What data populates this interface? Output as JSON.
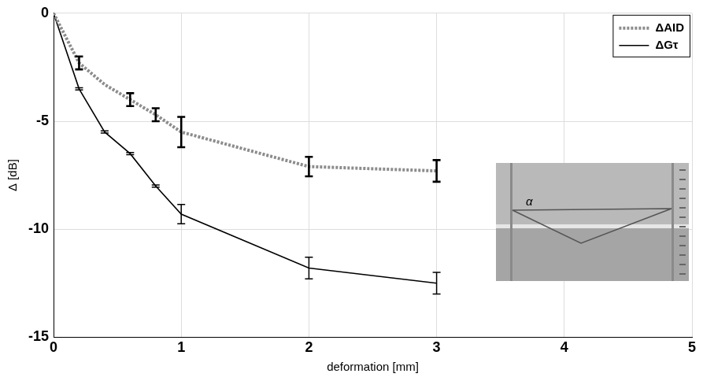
{
  "chart_data": {
    "type": "line",
    "x_label": "deformation [mm]",
    "y_label": "Δ [dB]",
    "x": [
      0,
      0.2,
      0.4,
      0.6,
      0.8,
      1,
      2,
      3
    ],
    "series": [
      {
        "name": "ΔAID",
        "color": "#8c8c8c",
        "line_style": "dotted",
        "marker": "none",
        "values": [
          0,
          -2.3,
          -3.3,
          -4.0,
          -4.7,
          -5.5,
          -7.1,
          -7.3
        ],
        "errors": [
          0,
          0.3,
          0,
          0.3,
          0.3,
          0.7,
          0.45,
          0.5
        ]
      },
      {
        "name": "ΔGτ",
        "color": "#000000",
        "line_style": "solid",
        "marker": "none",
        "values": [
          0,
          -3.5,
          -5.5,
          -6.5,
          -8.0,
          -9.3,
          -11.8,
          -12.5
        ],
        "errors": [
          0,
          0.05,
          0.05,
          0.05,
          0.05,
          0.45,
          0.5,
          0.5
        ]
      }
    ],
    "xlim": [
      0,
      5
    ],
    "xticks": [
      0,
      1,
      2,
      3,
      4,
      5
    ],
    "ylim": [
      -15,
      0
    ],
    "yticks": [
      -15,
      -10,
      -5,
      0
    ],
    "grid": true,
    "legend": "northeast",
    "annotations": [
      "α"
    ]
  }
}
